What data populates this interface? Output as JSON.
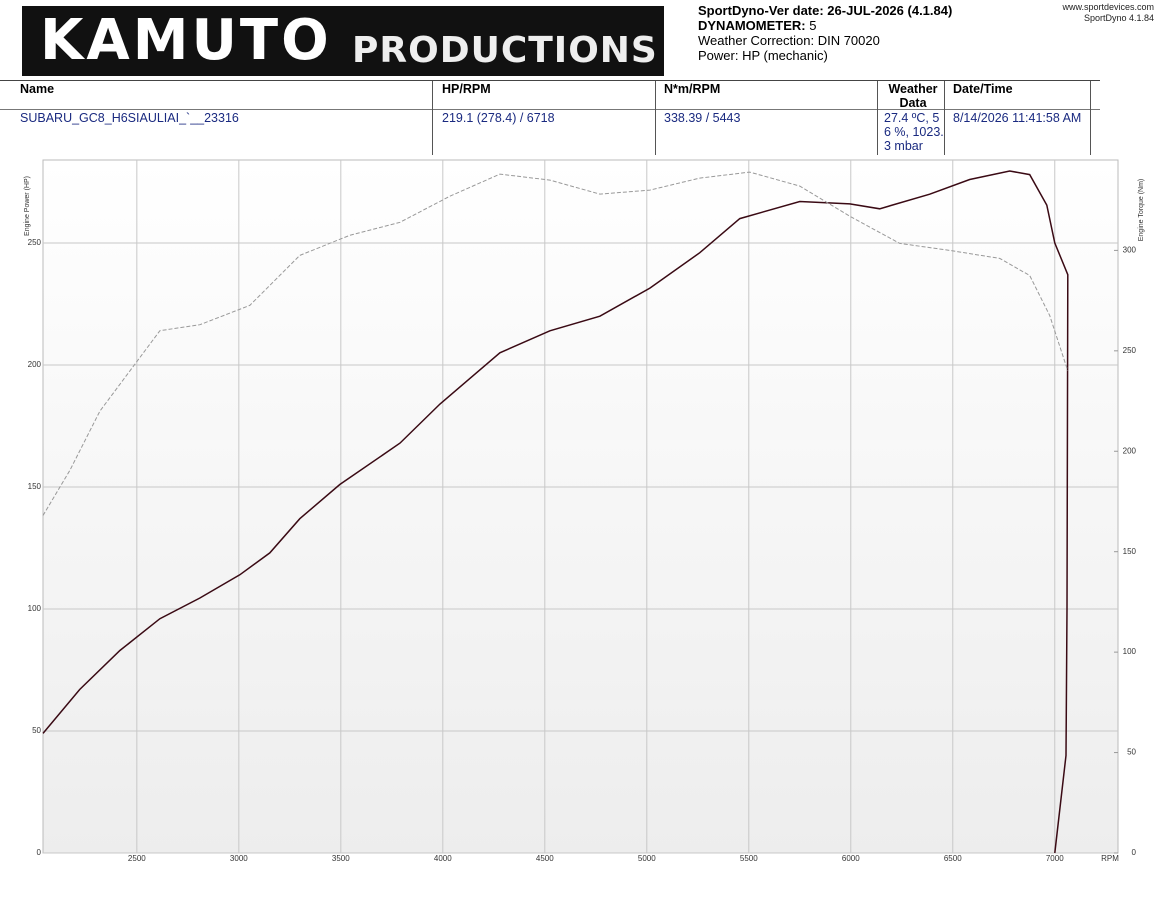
{
  "header": {
    "logo_main": "KAMUTO",
    "logo_sub": "PRODUCTIONS",
    "version": "SportDyno-Ver date: 26-JUL-2026 (4.1.84)",
    "dynamometer_label": "DYNAMOMETER:",
    "dynamometer": "5",
    "weather_correction": "Weather Correction: DIN 70020",
    "power": "Power: HP (mechanic)",
    "website": "www.sportdevices.com",
    "software": "SportDyno 4.1.84"
  },
  "table": {
    "columns": [
      "Name",
      "HP/RPM",
      "N*m/RPM",
      "Weather Data",
      "Date/Time"
    ],
    "rows": [
      [
        "SUBARU_GC8_H6SIAULIAI_`__23316",
        "219.1 (278.4) / 6718",
        "338.39 / 5443",
        "27.4 ºC, 56 %, 1023.3 mbar",
        "8/14/2026 11:41:58 AM"
      ]
    ]
  },
  "chart_data": {
    "type": "line",
    "x_label": "RPM",
    "y_label": "Engine Power (HP)",
    "y2_label": "Engine Torque (Nm)",
    "xlim": [
      2040,
      7310
    ],
    "xticks": [
      2500,
      3000,
      3500,
      4000,
      4500,
      5000,
      5500,
      6000,
      6500,
      7000
    ],
    "ylim": [
      0,
      284
    ],
    "yticks": [
      0,
      50,
      100,
      150,
      200,
      250
    ],
    "y2lim": [
      0,
      345
    ],
    "y2ticks": [
      0,
      50,
      100,
      150,
      200,
      250,
      300
    ],
    "grid": true,
    "series": [
      {
        "name": "Engine Power (HP)",
        "color": "#3a0a14",
        "dash": false,
        "x": [
          2040,
          2220,
          2417,
          2613,
          2809,
          3005,
          3152,
          3299,
          3495,
          3790,
          3986,
          4280,
          4525,
          4770,
          5015,
          5260,
          5456,
          5750,
          5995,
          6142,
          6387,
          6583,
          6779,
          6877,
          6961,
          7000,
          7064,
          7060,
          7055,
          7000
        ],
        "values": [
          49,
          67,
          83,
          96,
          104.5,
          114,
          123,
          137,
          151,
          168,
          184,
          205,
          214,
          220,
          231.5,
          246,
          260,
          267,
          266,
          264,
          270,
          276,
          279.5,
          278,
          265.5,
          250,
          237,
          100,
          40,
          0
        ]
      },
      {
        "name": "Engine Torque (Nm)",
        "color": "#999999",
        "dash": true,
        "axis": "y2",
        "x": [
          2040,
          2172,
          2319,
          2466,
          2613,
          2809,
          3054,
          3299,
          3544,
          3790,
          4035,
          4280,
          4525,
          4770,
          5015,
          5260,
          5505,
          5750,
          5995,
          6240,
          6485,
          6730,
          6877,
          6975,
          7064
        ],
        "values": [
          168,
          190.5,
          220,
          240,
          260,
          263,
          272.6,
          297.5,
          307.5,
          314,
          327,
          338,
          335,
          328,
          330,
          336,
          339,
          332,
          317,
          303.5,
          300,
          296,
          287.5,
          267.6,
          240
        ]
      }
    ]
  }
}
